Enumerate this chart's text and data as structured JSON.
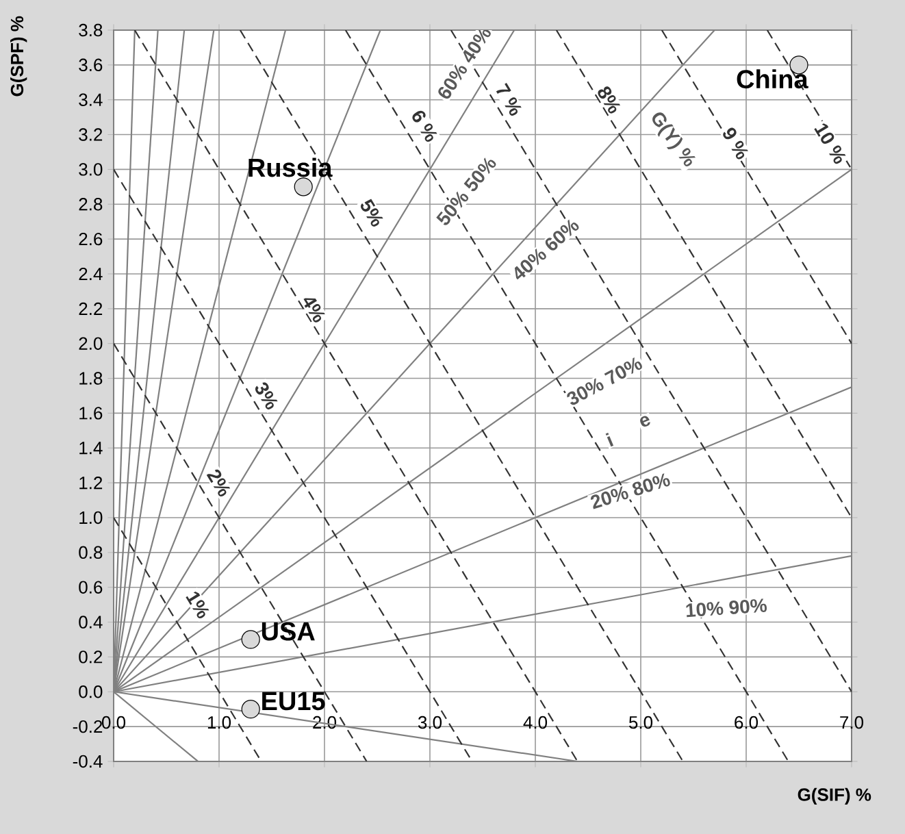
{
  "chart_data": {
    "type": "scatter",
    "xlabel": "G(SIF) %",
    "ylabel": "G(SPF) %",
    "xlim": [
      0,
      7
    ],
    "ylim": [
      -0.4,
      3.8
    ],
    "xticks": [
      {
        "value": 0,
        "label": "0.0"
      },
      {
        "value": 1,
        "label": "1.0"
      },
      {
        "value": 2,
        "label": "2.0"
      },
      {
        "value": 3,
        "label": "3.0"
      },
      {
        "value": 4,
        "label": "4.0"
      },
      {
        "value": 5,
        "label": "5.0"
      },
      {
        "value": 6,
        "label": "6.0"
      },
      {
        "value": 7,
        "label": "7.0"
      }
    ],
    "yticks": [
      {
        "value": -0.4,
        "label": "-0.4"
      },
      {
        "value": -0.2,
        "label": "-0.2"
      },
      {
        "value": 0,
        "label": "0.0"
      },
      {
        "value": 0.2,
        "label": "0.2"
      },
      {
        "value": 0.4,
        "label": "0.4"
      },
      {
        "value": 0.6,
        "label": "0.6"
      },
      {
        "value": 0.8,
        "label": "0.8"
      },
      {
        "value": 1.0,
        "label": "1.0"
      },
      {
        "value": 1.2,
        "label": "1.2"
      },
      {
        "value": 1.4,
        "label": "1.4"
      },
      {
        "value": 1.6,
        "label": "1.6"
      },
      {
        "value": 1.8,
        "label": "1.8"
      },
      {
        "value": 2.0,
        "label": "2.0"
      },
      {
        "value": 2.2,
        "label": "2.2"
      },
      {
        "value": 2.4,
        "label": "2.4"
      },
      {
        "value": 2.6,
        "label": "2.6"
      },
      {
        "value": 2.8,
        "label": "2.8"
      },
      {
        "value": 3.0,
        "label": "3.0"
      },
      {
        "value": 3.2,
        "label": "3.2"
      },
      {
        "value": 3.4,
        "label": "3.4"
      },
      {
        "value": 3.6,
        "label": "3.6"
      },
      {
        "value": 3.8,
        "label": "3.8"
      }
    ],
    "grid": true,
    "series": [
      {
        "type": "line",
        "color": "#808080",
        "line_style": "solid",
        "x": [
          0,
          0.2
        ],
        "values": [
          0,
          3.8
        ]
      },
      {
        "type": "line",
        "color": "#808080",
        "line_style": "solid",
        "x": [
          0,
          0.42
        ],
        "values": [
          0,
          3.8
        ]
      },
      {
        "type": "line",
        "color": "#808080",
        "line_style": "solid",
        "x": [
          0,
          0.67
        ],
        "values": [
          0,
          3.8
        ]
      },
      {
        "type": "line",
        "color": "#808080",
        "line_style": "solid",
        "x": [
          0,
          0.95
        ],
        "values": [
          0,
          3.8
        ]
      },
      {
        "type": "line",
        "color": "#808080",
        "line_style": "solid",
        "x": [
          0,
          1.63
        ],
        "values": [
          0,
          3.8
        ]
      },
      {
        "type": "line",
        "color": "#808080",
        "line_style": "solid",
        "x": [
          0,
          2.53
        ],
        "values": [
          0,
          3.8
        ]
      },
      {
        "type": "line",
        "color": "#808080",
        "line_style": "solid",
        "x": [
          0,
          3.8
        ],
        "values": [
          0,
          3.8
        ]
      },
      {
        "type": "line",
        "color": "#808080",
        "line_style": "solid",
        "x": [
          0,
          5.7
        ],
        "values": [
          0,
          3.8
        ]
      },
      {
        "type": "line",
        "color": "#808080",
        "line_style": "solid",
        "x": [
          0,
          7
        ],
        "values": [
          0,
          3.0
        ]
      },
      {
        "type": "line",
        "color": "#808080",
        "line_style": "solid",
        "x": [
          0,
          7
        ],
        "values": [
          0,
          1.75
        ]
      },
      {
        "type": "line",
        "color": "#808080",
        "line_style": "solid",
        "x": [
          0,
          7
        ],
        "values": [
          0,
          0.78
        ]
      },
      {
        "type": "line",
        "color": "#808080",
        "line_style": "solid",
        "x": [
          0,
          4.4
        ],
        "values": [
          0,
          -0.4
        ]
      },
      {
        "type": "line",
        "color": "#808080",
        "line_style": "solid",
        "x": [
          0,
          0.8
        ],
        "values": [
          0,
          -0.4
        ]
      },
      {
        "type": "line",
        "color": "#333333",
        "line_style": "dashed",
        "x": [
          0,
          1.4
        ],
        "values": [
          1,
          -0.4
        ]
      },
      {
        "type": "line",
        "color": "#333333",
        "line_style": "dashed",
        "x": [
          0,
          2.4
        ],
        "values": [
          2,
          -0.4
        ]
      },
      {
        "type": "line",
        "color": "#333333",
        "line_style": "dashed",
        "x": [
          0,
          3.4
        ],
        "values": [
          3,
          -0.4
        ]
      },
      {
        "type": "line",
        "color": "#333333",
        "line_style": "dashed",
        "x": [
          0.2,
          4.4
        ],
        "values": [
          3.8,
          -0.4
        ]
      },
      {
        "type": "line",
        "color": "#333333",
        "line_style": "dashed",
        "x": [
          1.2,
          5.4
        ],
        "values": [
          3.8,
          -0.4
        ]
      },
      {
        "type": "line",
        "color": "#333333",
        "line_style": "dashed",
        "x": [
          2.2,
          6.4
        ],
        "values": [
          3.8,
          -0.4
        ]
      },
      {
        "type": "line",
        "color": "#333333",
        "line_style": "dashed",
        "x": [
          3.2,
          7
        ],
        "values": [
          3.8,
          0
        ]
      },
      {
        "type": "line",
        "color": "#333333",
        "line_style": "dashed",
        "x": [
          4.2,
          7
        ],
        "values": [
          3.8,
          1
        ]
      },
      {
        "type": "line",
        "color": "#333333",
        "line_style": "dashed",
        "x": [
          5.2,
          7
        ],
        "values": [
          3.8,
          2
        ]
      },
      {
        "type": "line",
        "color": "#333333",
        "line_style": "dashed",
        "x": [
          6.2,
          7
        ],
        "values": [
          3.8,
          3
        ]
      },
      {
        "name": "Russia",
        "color": "#d9d9d9",
        "marker": "circle",
        "x": [
          1.8
        ],
        "values": [
          2.9
        ]
      },
      {
        "name": "China",
        "color": "#d9d9d9",
        "marker": "circle",
        "x": [
          6.5
        ],
        "values": [
          3.6
        ]
      },
      {
        "name": "USA",
        "color": "#d9d9d9",
        "marker": "circle",
        "x": [
          1.3
        ],
        "values": [
          0.3
        ]
      },
      {
        "name": "EU15",
        "color": "#d9d9d9",
        "marker": "circle",
        "x": [
          1.3
        ],
        "values": [
          -0.1
        ]
      }
    ],
    "annotations": [
      {
        "text": "1%",
        "x": 0.8,
        "y": 0.5
      },
      {
        "text": "2%",
        "x": 1.0,
        "y": 1.2
      },
      {
        "text": "3%",
        "x": 1.45,
        "y": 1.7
      },
      {
        "text": "4%",
        "x": 1.9,
        "y": 2.2
      },
      {
        "text": "5%",
        "x": 2.45,
        "y": 2.75
      },
      {
        "text": "6 %",
        "x": 2.95,
        "y": 3.25
      },
      {
        "text": "7 %",
        "x": 3.75,
        "y": 3.4
      },
      {
        "text": "8%",
        "x": 4.7,
        "y": 3.4
      },
      "G(Y) %",
      {
        "text": "9 %",
        "x": 5.9,
        "y": 3.15
      },
      {
        "text": "10 %",
        "x": 6.8,
        "y": 3.15
      },
      "60% 40%",
      "50% 50%",
      "40% 60%",
      "30% 70%",
      "i",
      "e",
      "20% 80%",
      "10% 90%"
    ]
  }
}
